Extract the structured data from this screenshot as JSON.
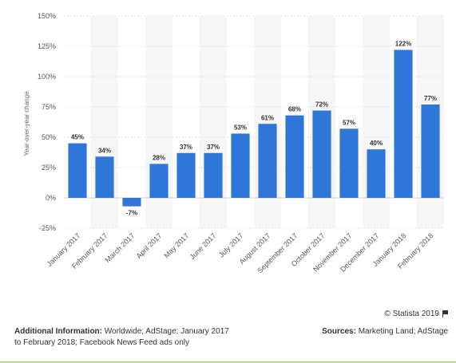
{
  "chart_data": {
    "type": "bar",
    "title": "",
    "xlabel": "",
    "ylabel": "Year-over-year change",
    "ylim": [
      -25,
      150
    ],
    "y_ticks": [
      "150%",
      "125%",
      "100%",
      "75%",
      "50%",
      "25%",
      "0%",
      "-25%"
    ],
    "y_tick_values": [
      150,
      125,
      100,
      75,
      50,
      25,
      0,
      -25
    ],
    "categories": [
      "January 2017",
      "February 2017",
      "March 2017",
      "April 2017",
      "May 2017",
      "June 2017",
      "July 2017",
      "August 2017",
      "September 2017",
      "October 2017",
      "November 2017",
      "December 2017",
      "January 2018",
      "February 2018"
    ],
    "values": [
      45,
      34,
      -7,
      28,
      37,
      37,
      53,
      61,
      68,
      72,
      57,
      40,
      122,
      77
    ],
    "data_labels": [
      "45%",
      "34%",
      "-7%",
      "28%",
      "37%",
      "37%",
      "53%",
      "61%",
      "68%",
      "72%",
      "57%",
      "40%",
      "122%",
      "77%"
    ],
    "bar_color": "#2f76d8",
    "grid": true,
    "legend": "none"
  },
  "footer": {
    "copyright": "© Statista 2019",
    "info_label": "Additional Information:",
    "info_text": " Worldwide; AdStage; January 2017 to February 2018; Facebook News Feed ads only",
    "sources_label": "Sources:",
    "sources_text": " Marketing Land; AdStage"
  }
}
